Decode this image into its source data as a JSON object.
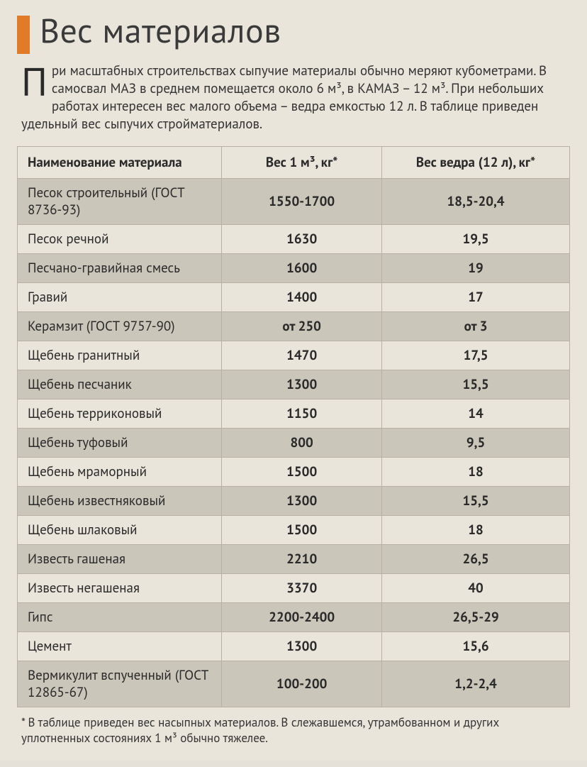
{
  "title": "Вес материалов",
  "intro": {
    "dropcap": "П",
    "text_html": "ри масштабных строительствах сыпучие материалы обычно меряют кубометрами. В самосвал МАЗ в среднем помещается около 6 м³, в КАМАЗ – 12 м³. При небольших работах интересен вес малого объема – ведра емкостью 12 л. В таблице приведен удельный вес сыпучих стройматериалов."
  },
  "colors": {
    "accent": "#e07b29",
    "page_bg": "#eae5db",
    "row_shade": "#cbc6ba",
    "border": "#b7b1a5",
    "text": "#2a2a2a"
  },
  "table": {
    "columns": [
      {
        "key": "name",
        "label_html": "Наименование материала",
        "width_pct": 37,
        "align": "left"
      },
      {
        "key": "m3",
        "label_html": "Вес 1 м³, кг*",
        "width_pct": 29,
        "align": "center"
      },
      {
        "key": "bucket",
        "label_html": "Вес ведра (12 л), кг*",
        "width_pct": 34,
        "align": "center"
      }
    ],
    "rows": [
      {
        "name": "Песок строительный (ГОСТ 8736-93)",
        "m3": "1550-1700",
        "bucket": "18,5-20,4"
      },
      {
        "name": "Песок речной",
        "m3": "1630",
        "bucket": "19,5"
      },
      {
        "name": "Песчано-гравийная смесь",
        "m3": "1600",
        "bucket": "19"
      },
      {
        "name": "Гравий",
        "m3": "1400",
        "bucket": "17"
      },
      {
        "name": "Керамзит (ГОСТ 9757-90)",
        "m3": "от 250",
        "bucket": "от 3"
      },
      {
        "name": "Щебень гранитный",
        "m3": "1470",
        "bucket": "17,5"
      },
      {
        "name": "Щебень песчаник",
        "m3": "1300",
        "bucket": "15,5"
      },
      {
        "name": "Щебень терриконовый",
        "m3": "1150",
        "bucket": "14"
      },
      {
        "name": "Щебень туфовый",
        "m3": "800",
        "bucket": "9,5"
      },
      {
        "name": "Щебень мраморный",
        "m3": "1500",
        "bucket": "18"
      },
      {
        "name": "Щебень известняковый",
        "m3": "1300",
        "bucket": "15,5"
      },
      {
        "name": "Щебень шлаковый",
        "m3": "1500",
        "bucket": "18"
      },
      {
        "name": "Известь гашеная",
        "m3": "2210",
        "bucket": "26,5"
      },
      {
        "name": "Известь негашеная",
        "m3": "3370",
        "bucket": "40"
      },
      {
        "name": "Гипс",
        "m3": "2200-2400",
        "bucket": "26,5-29"
      },
      {
        "name": "Цемент",
        "m3": "1300",
        "bucket": "15,6"
      },
      {
        "name": "Вермикулит вспученный (ГОСТ 12865-67)",
        "m3": "100-200",
        "bucket": "1,2-2,4"
      }
    ],
    "stripe_start_shaded": true
  },
  "footnote_html": "* В таблице приведен вес насыпных материалов. В слежавшемся, утрамбованном и других уплотненных состояниях 1 м³ обычно тяжелее."
}
